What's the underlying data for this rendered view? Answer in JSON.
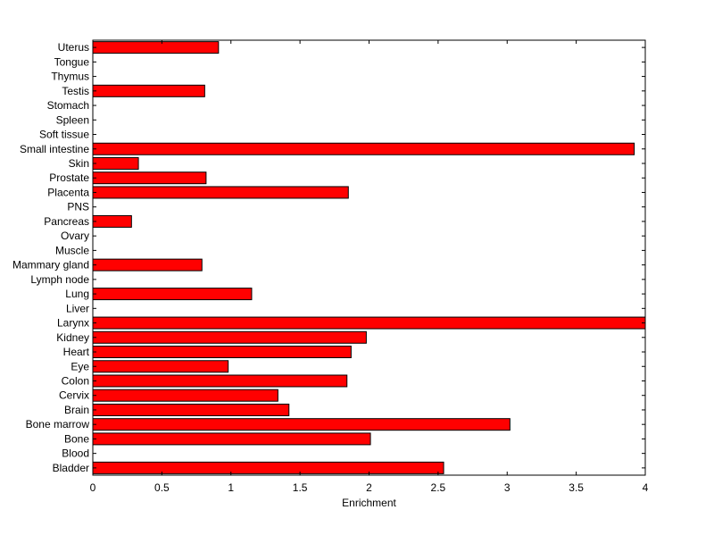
{
  "chart_data": {
    "type": "bar",
    "orientation": "horizontal",
    "title": "",
    "xlabel": "Enrichment",
    "ylabel": "",
    "xlim": [
      0,
      4
    ],
    "xticks": [
      0,
      0.5,
      1,
      1.5,
      2,
      2.5,
      3,
      3.5,
      4
    ],
    "xtick_labels": [
      "0",
      "0.5",
      "1",
      "1.5",
      "2",
      "2.5",
      "3",
      "3.5",
      "4"
    ],
    "categories": [
      "Bladder",
      "Blood",
      "Bone",
      "Bone marrow",
      "Brain",
      "Cervix",
      "Colon",
      "Eye",
      "Heart",
      "Kidney",
      "Larynx",
      "Liver",
      "Lung",
      "Lymph node",
      "Mammary gland",
      "Muscle",
      "Ovary",
      "Pancreas",
      "PNS",
      "Placenta",
      "Prostate",
      "Skin",
      "Small intestine",
      "Soft tissue",
      "Spleen",
      "Stomach",
      "Testis",
      "Thymus",
      "Tongue",
      "Uterus"
    ],
    "values": [
      2.54,
      0,
      2.01,
      3.02,
      1.42,
      1.34,
      1.84,
      0.98,
      1.87,
      1.98,
      4.0,
      0,
      1.15,
      0,
      0.79,
      0,
      0,
      0.28,
      0,
      1.85,
      0.82,
      0.33,
      3.92,
      0,
      0,
      0,
      0.81,
      0,
      0,
      0.91
    ],
    "bar_color": "#ff0000",
    "bar_edge_color": "#000000",
    "grid": false,
    "legend": "none"
  }
}
